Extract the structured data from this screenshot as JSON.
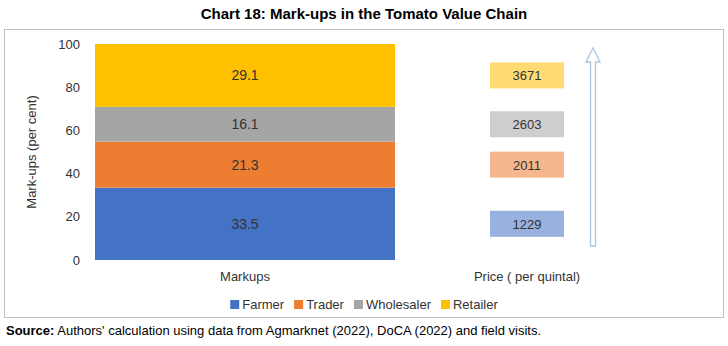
{
  "chart_data": {
    "type": "bar",
    "stacked": true,
    "data_labels": true,
    "grid": false,
    "legend": "bottom",
    "title": "Chart 18: Mark-ups in the Tomato Value Chain",
    "y_label": "Mark-ups (per cent)",
    "source": "Source: Authors' calculation using data from Agmarknet (2022), DoCA (2022) and field visits.",
    "categories": [
      "Markups",
      "Price ( per quintal)"
    ],
    "ylim": [
      0,
      100
    ],
    "yticks": [
      0,
      20,
      40,
      60,
      80,
      100
    ],
    "series": [
      {
        "name": "Farmer",
        "color": "#4472c4",
        "values": [
          33.5,
          null
        ],
        "price": 1229
      },
      {
        "name": "Trader",
        "color": "#ed7d31",
        "values": [
          21.3,
          null
        ],
        "price": 2011
      },
      {
        "name": "Wholesaler",
        "color": "#a5a5a5",
        "values": [
          16.1,
          null
        ],
        "price": 2603
      },
      {
        "name": "Retailer",
        "color": "#ffc000",
        "values": [
          29.1,
          null
        ],
        "price": 3671
      }
    ]
  }
}
